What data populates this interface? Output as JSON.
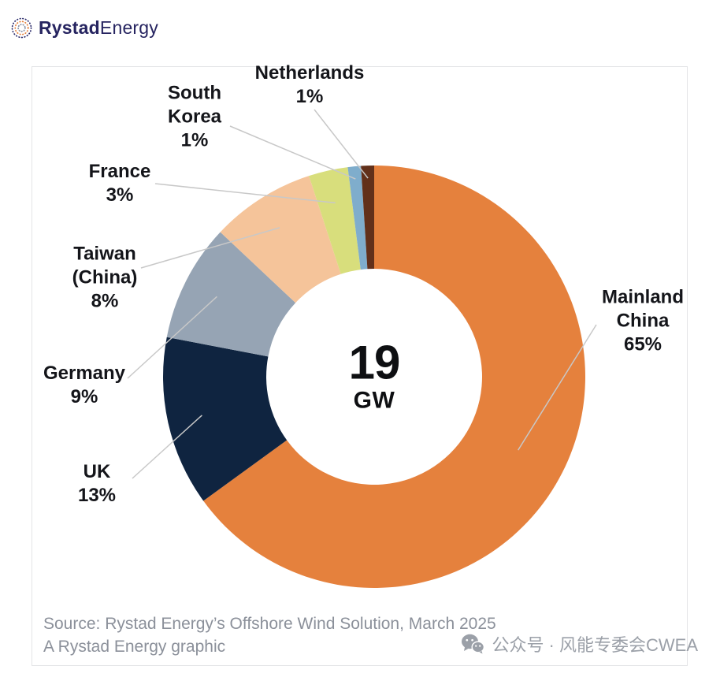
{
  "header": {
    "logo_bold": "Rystad",
    "logo_light": "Energy"
  },
  "chart_data": {
    "type": "pie",
    "subtype": "donut",
    "title": "",
    "categories": [
      "Mainland China",
      "UK",
      "Germany",
      "Taiwan (China)",
      "France",
      "South Korea",
      "Netherlands"
    ],
    "values": [
      65,
      13,
      9,
      8,
      3,
      1,
      1
    ],
    "value_unit": "%",
    "colors": [
      "#E5813D",
      "#0F2440",
      "#96A4B4",
      "#F5C49A",
      "#D8DE7C",
      "#7FADCC",
      "#62301A"
    ],
    "center_label": {
      "value": "19",
      "unit": "GW"
    },
    "slice_labels": [
      "Mainland\nChina\n65%",
      "UK\n13%",
      "Germany\n9%",
      "Taiwan\n(China)\n8%",
      "France\n3%",
      "South\nKorea\n1%",
      "Netherlands\n1%"
    ],
    "start_angle": "top",
    "direction": "clockwise",
    "legend": "none"
  },
  "footer": {
    "source_line1": "Source: Rystad Energy’s Offshore Wind Solution, March 2025",
    "source_line2": "A Rystad Energy graphic",
    "watermark": "公众号 · 风能专委会CWEA"
  },
  "icons": {
    "logo_icon": "globe-dotted-icon",
    "watermark_icon": "wechat-icon"
  }
}
